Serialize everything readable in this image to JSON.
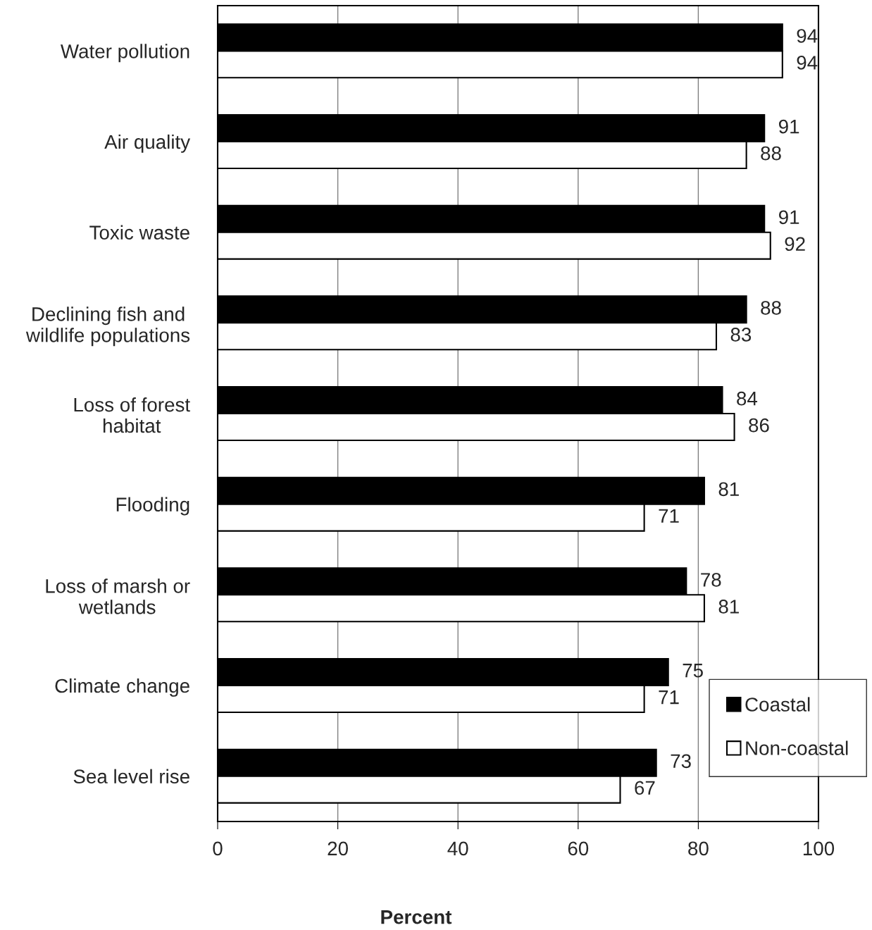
{
  "chart_data": {
    "type": "bar",
    "orientation": "horizontal",
    "xlabel": "Percent",
    "categories": [
      "Water pollution",
      "Air quality",
      "Toxic waste",
      "Declining fish and\nwildlife populations",
      "Loss of forest\nhabitat",
      "Flooding",
      "Loss of marsh or\nwetlands",
      "Climate change",
      "Sea level rise"
    ],
    "series": [
      {
        "name": "Coastal",
        "color": "#000000",
        "values": [
          94,
          91,
          91,
          88,
          84,
          81,
          78,
          75,
          73
        ]
      },
      {
        "name": "Non-coastal",
        "color": "#ffffff",
        "values": [
          94,
          88,
          92,
          83,
          86,
          71,
          81,
          71,
          67
        ]
      }
    ],
    "xlim": [
      0,
      100
    ],
    "xticks": [
      0,
      20,
      40,
      60,
      80,
      100
    ],
    "grid": "x",
    "legend": "bottom right",
    "data_labels": true
  }
}
